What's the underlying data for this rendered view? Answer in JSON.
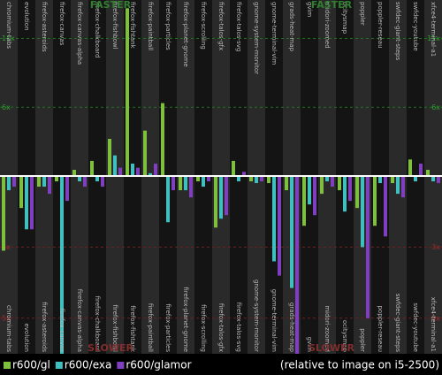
{
  "chart_data": {
    "type": "bar",
    "faster_label": "FASTER",
    "slower_label": "SLOWER",
    "note": "(relative to image on i5-2500)",
    "categories": [
      "chromium-tabs",
      "evolution",
      "firefox-asteroids",
      "firefox-canvas",
      "firefox-canvas-alpha",
      "firefox-chalkboard",
      "firefox-fishbowl",
      "firefox-fishtank",
      "firefox-paintball",
      "firefox-particles",
      "firefox-planet-gnome",
      "firefox-scrolling",
      "firefox-talos-gfx",
      "firefox-talos-svg",
      "gnome-system-monitor",
      "gnome-terminal-vim",
      "grads-heat-map",
      "gvim",
      "midori-zoomed",
      "ocitysmap",
      "poppler",
      "poppler-reseau",
      "swfdec-giant-steps",
      "swfdec-youtube",
      "xfce4-terminal-a1"
    ],
    "baseline": 1,
    "series": [
      {
        "name": "r600/gl",
        "color": "#7fbf3f",
        "values": [
          -3.1,
          -1.9,
          -1.3,
          -1.15,
          1.45,
          2.1,
          3.7,
          13.2,
          4.3,
          6.3,
          -1.4,
          -1.15,
          -2.45,
          2.1,
          -1.15,
          -1.2,
          -1.4,
          -2.4,
          -1.5,
          -1.4,
          -1.9,
          -2.4,
          -1.2,
          2.2,
          1.45
        ]
      },
      {
        "name": "r600/exa",
        "color": "#3fbfbf",
        "values": [
          -1.4,
          -2.5,
          -1.3,
          -6.0,
          -1.15,
          -1.15,
          2.5,
          1.9,
          1.2,
          -2.3,
          -1.4,
          -1.3,
          -2.2,
          -1.15,
          -1.2,
          -3.4,
          -4.15,
          -1.8,
          -1.15,
          -2.0,
          -3.0,
          -1.2,
          -1.5,
          -1.15,
          -1.15
        ]
      },
      {
        "name": "r600/glamor",
        "color": "#7f3fbf",
        "values": [
          -1.3,
          -2.5,
          -1.5,
          -1.7,
          -1.3,
          -1.3,
          1.6,
          1.6,
          1.9,
          -1.4,
          -1.6,
          -1.15,
          -2.1,
          1.3,
          -1.15,
          -3.8,
          -6.0,
          -2.1,
          -1.3,
          -1.7,
          -5.0,
          -2.7,
          -1.6,
          1.9,
          -1.2
        ]
      }
    ],
    "ylim": [
      -6,
      13.8
    ],
    "yticks": [
      {
        "value": 11,
        "label": "11x"
      },
      {
        "value": 6,
        "label": "6x"
      },
      {
        "value": -3,
        "label": "3x"
      },
      {
        "value": -5,
        "label": "5x"
      }
    ]
  }
}
